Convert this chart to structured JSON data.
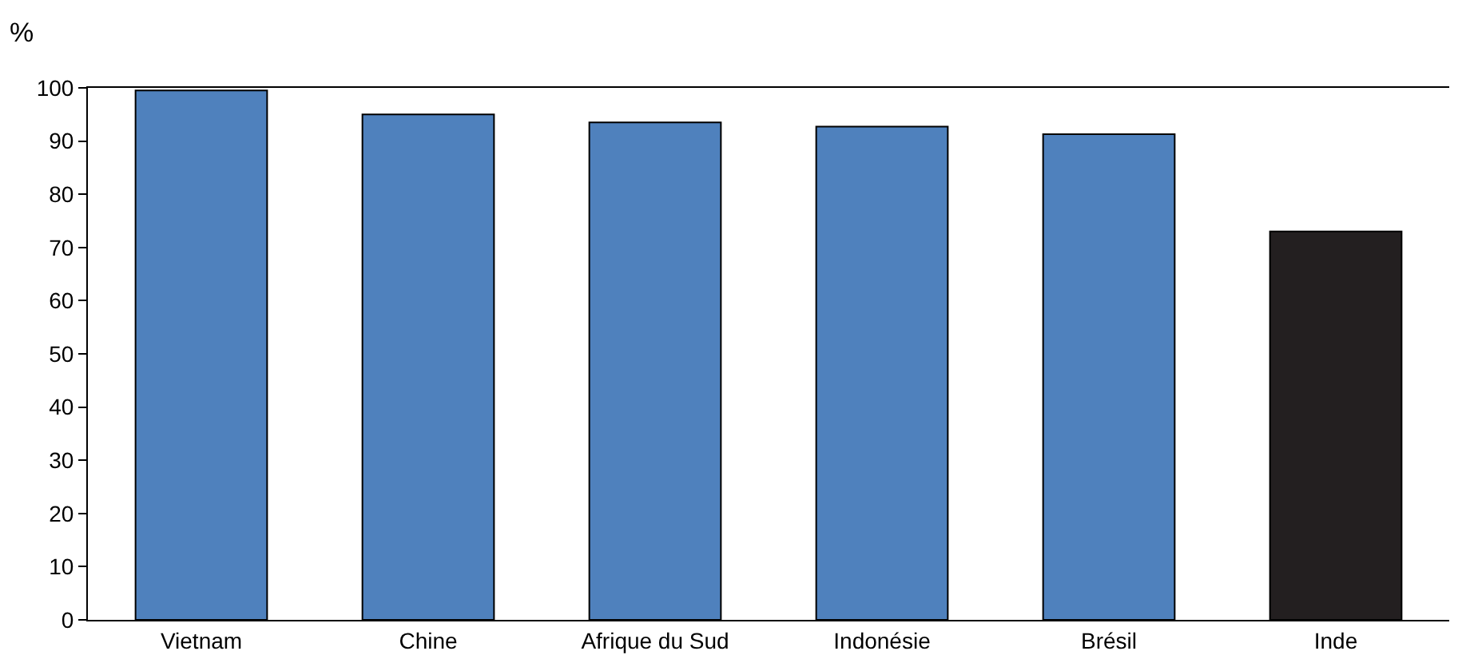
{
  "chart_data": {
    "type": "bar",
    "ylabel": "%",
    "categories": [
      "Vietnam",
      "Chine",
      "Afrique du Sud",
      "Indonésie",
      "Brésil",
      "Inde"
    ],
    "values": [
      99.5,
      95,
      93.5,
      92.7,
      91.3,
      73
    ],
    "colors": [
      "#4f81bd",
      "#4f81bd",
      "#4f81bd",
      "#4f81bd",
      "#4f81bd",
      "#231f20"
    ],
    "ylim": [
      0,
      100
    ],
    "yticks": [
      0,
      10,
      20,
      30,
      40,
      50,
      60,
      70,
      80,
      90,
      100
    ],
    "grid": false
  }
}
